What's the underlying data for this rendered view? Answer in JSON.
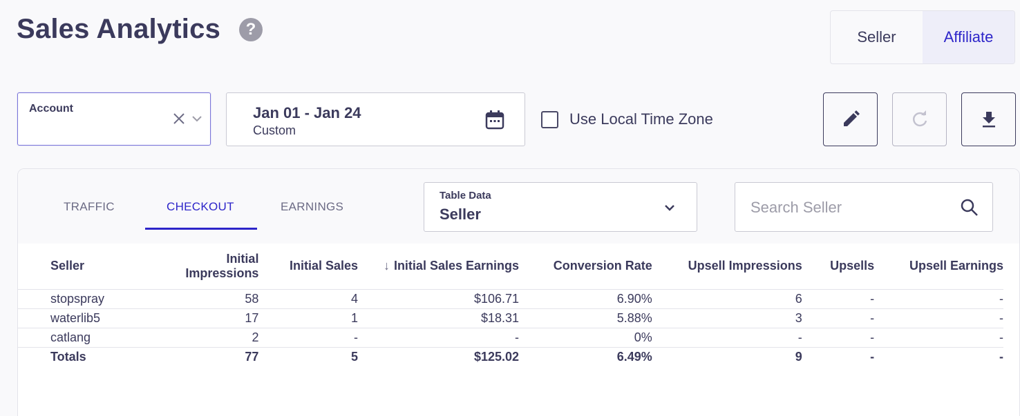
{
  "page": {
    "title": "Sales Analytics",
    "help_icon": "question-circle-icon"
  },
  "view_toggle": {
    "seller": "Seller",
    "affiliate": "Affiliate",
    "selected": "Affiliate"
  },
  "filters": {
    "account_label": "Account",
    "date_range": "Jan 01 - Jan 24",
    "date_mode": "Custom",
    "local_time_zone_label": "Use Local Time Zone",
    "local_time_zone_checked": false
  },
  "actions": {
    "edit_icon": "pencil-icon",
    "refresh_icon": "refresh-icon",
    "download_icon": "download-icon"
  },
  "tabs": [
    {
      "label": "TRAFFIC",
      "active": false
    },
    {
      "label": "CHECKOUT",
      "active": true
    },
    {
      "label": "EARNINGS",
      "active": false
    }
  ],
  "table_data_select": {
    "label": "Table Data",
    "value": "Seller"
  },
  "search": {
    "placeholder": "Search Seller"
  },
  "table": {
    "columns": [
      "Seller",
      "Initial Impressions",
      "Initial Sales",
      "Initial Sales Earnings",
      "Conversion Rate",
      "Upsell Impressions",
      "Upsells",
      "Upsell Earnings"
    ],
    "sorted_column": "Initial Sales Earnings",
    "sort_direction": "desc",
    "rows": [
      [
        "stopspray",
        "58",
        "4",
        "$106.71",
        "6.90%",
        "6",
        "-",
        "-"
      ],
      [
        "waterlib5",
        "17",
        "1",
        "$18.31",
        "5.88%",
        "3",
        "-",
        "-"
      ],
      [
        "catlang",
        "2",
        "-",
        "-",
        "0%",
        "-",
        "-",
        "-"
      ]
    ],
    "totals": [
      "Totals",
      "77",
      "5",
      "$125.02",
      "6.49%",
      "9",
      "-",
      "-"
    ]
  },
  "colors": {
    "accent": "#2d25c9",
    "text": "#3b3a5c",
    "muted": "#9d9ca8"
  }
}
